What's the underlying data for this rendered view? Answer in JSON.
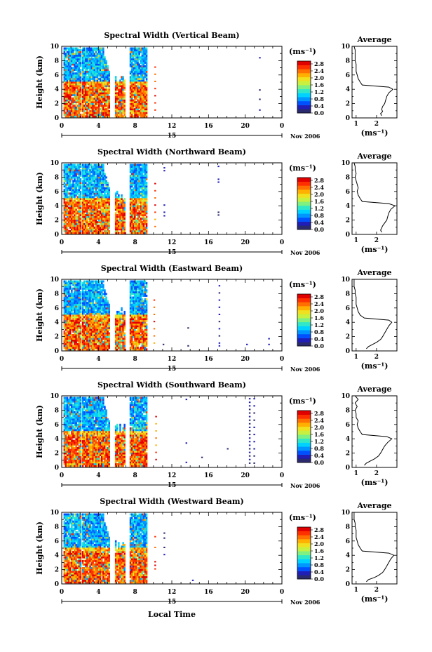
{
  "figure": {
    "xlabel": "Local Time",
    "date_label": "Nov 2006",
    "day_label": "15",
    "colorbar_unit": "(ms⁻¹)",
    "avg_title": "Average",
    "avg_unit": "(ms⁻¹)",
    "colorbar_ticks": [
      "2.8",
      "2.4",
      "2.0",
      "1.6",
      "1.2",
      "0.8",
      "0.4",
      "0.0"
    ],
    "colormap": [
      "#2a2a6e",
      "#1f1fb8",
      "#0050ff",
      "#0096ff",
      "#00d2ff",
      "#30e8c8",
      "#80f080",
      "#c8f040",
      "#f0e020",
      "#ffb000",
      "#ff7000",
      "#ff3000",
      "#e00000"
    ]
  },
  "chart_data": [
    {
      "type": "heatmap",
      "title": "Spectral Width (Vertical Beam)",
      "ylabel": "Height (km)",
      "x_ticks": [
        "0",
        "4",
        "8",
        "12",
        "16",
        "20",
        "0"
      ],
      "y_ticks": [
        "0",
        "2",
        "4",
        "6",
        "8",
        "10"
      ],
      "xlim": [
        0,
        24
      ],
      "ylim": [
        0,
        10
      ],
      "colorbar_range": [
        0.0,
        3.0
      ],
      "average_profile": {
        "xlim": [
          0.8,
          3.0
        ],
        "x_ticks": [
          "1",
          "2"
        ],
        "y_ticks": [
          "0",
          "2",
          "4",
          "6",
          "8",
          "10"
        ],
        "height": [
          0.3,
          0.6,
          0.9,
          1.2,
          1.6,
          2.0,
          2.5,
          3.0,
          3.5,
          4.0,
          4.3,
          4.6,
          5.0,
          5.5,
          6.0,
          6.5,
          7.0,
          7.5,
          8.0,
          8.5,
          9.0,
          9.5,
          10.0
        ],
        "width": [
          2.25,
          2.2,
          2.3,
          2.25,
          2.3,
          2.4,
          2.45,
          2.5,
          2.6,
          2.8,
          2.6,
          1.3,
          1.2,
          1.1,
          1.05,
          1.0,
          1.0,
          1.0,
          0.95,
          0.95,
          0.95,
          0.95,
          0.9
        ]
      }
    },
    {
      "type": "heatmap",
      "title": "Spectral Width (Northward Beam)",
      "ylabel": "Height (km)",
      "x_ticks": [
        "0",
        "4",
        "8",
        "12",
        "16",
        "20",
        "0"
      ],
      "y_ticks": [
        "0",
        "2",
        "4",
        "6",
        "8",
        "10"
      ],
      "xlim": [
        0,
        24
      ],
      "ylim": [
        0,
        10
      ],
      "colorbar_range": [
        0.0,
        3.0
      ],
      "average_profile": {
        "xlim": [
          0.8,
          3.0
        ],
        "x_ticks": [
          "1",
          "2"
        ],
        "y_ticks": [
          "0",
          "2",
          "4",
          "6",
          "8",
          "10"
        ],
        "height": [
          0.3,
          0.6,
          0.9,
          1.2,
          1.6,
          2.0,
          2.5,
          3.0,
          3.5,
          4.0,
          4.3,
          4.6,
          5.0,
          5.5,
          6.0,
          6.5,
          7.0,
          7.5,
          8.0,
          8.5,
          9.0,
          9.5,
          10.0
        ],
        "width": [
          2.25,
          2.2,
          2.25,
          2.3,
          2.4,
          2.5,
          2.55,
          2.6,
          2.7,
          2.9,
          2.6,
          1.3,
          1.2,
          1.1,
          1.05,
          1.1,
          1.05,
          1.0,
          0.95,
          1.0,
          0.95,
          0.95,
          0.9
        ]
      }
    },
    {
      "type": "heatmap",
      "title": "Spectral Width (Eastward Beam)",
      "ylabel": "Height (km)",
      "x_ticks": [
        "0",
        "4",
        "8",
        "12",
        "16",
        "20",
        "0"
      ],
      "y_ticks": [
        "0",
        "2",
        "4",
        "6",
        "8",
        "10"
      ],
      "xlim": [
        0,
        24
      ],
      "ylim": [
        0,
        10
      ],
      "colorbar_range": [
        0.0,
        3.0
      ],
      "average_profile": {
        "xlim": [
          0.8,
          3.0
        ],
        "x_ticks": [
          "1",
          "2"
        ],
        "y_ticks": [
          "0",
          "2",
          "4",
          "6",
          "8",
          "10"
        ],
        "height": [
          0.3,
          0.6,
          0.9,
          1.2,
          1.6,
          2.0,
          2.5,
          3.0,
          3.5,
          4.0,
          4.3,
          4.6,
          5.0,
          5.5,
          6.0,
          6.5,
          7.0,
          7.5,
          8.0,
          8.5,
          9.0,
          9.5,
          10.0
        ],
        "width": [
          1.5,
          1.6,
          1.8,
          2.0,
          2.2,
          2.3,
          2.4,
          2.5,
          2.6,
          2.75,
          2.6,
          1.4,
          1.2,
          1.1,
          1.05,
          1.0,
          1.0,
          1.0,
          0.95,
          0.95,
          0.9,
          0.9,
          0.9
        ]
      }
    },
    {
      "type": "heatmap",
      "title": "Spectral Width (Southward Beam)",
      "ylabel": "Height (km)",
      "x_ticks": [
        "0",
        "4",
        "8",
        "12",
        "16",
        "20",
        "0"
      ],
      "y_ticks": [
        "0",
        "2",
        "4",
        "6",
        "8",
        "10"
      ],
      "xlim": [
        0,
        24
      ],
      "ylim": [
        0,
        10
      ],
      "colorbar_range": [
        0.0,
        3.0
      ],
      "average_profile": {
        "xlim": [
          0.8,
          3.0
        ],
        "x_ticks": [
          "1",
          "2"
        ],
        "y_ticks": [
          "0",
          "2",
          "4",
          "6",
          "8",
          "10"
        ],
        "height": [
          0.3,
          0.6,
          0.9,
          1.2,
          1.6,
          2.0,
          2.5,
          3.0,
          3.5,
          4.0,
          4.3,
          4.6,
          5.0,
          5.5,
          6.0,
          6.5,
          7.0,
          7.5,
          8.0,
          8.5,
          9.0,
          9.5,
          10.0
        ],
        "width": [
          1.4,
          1.5,
          1.7,
          1.9,
          2.1,
          2.2,
          2.3,
          2.4,
          2.55,
          2.75,
          2.5,
          1.3,
          1.2,
          1.1,
          1.05,
          1.1,
          1.0,
          1.0,
          0.95,
          1.05,
          0.95,
          1.1,
          0.95
        ]
      }
    },
    {
      "type": "heatmap",
      "title": "Spectral Width (Westward Beam)",
      "ylabel": "Height (km)",
      "x_ticks": [
        "0",
        "4",
        "8",
        "12",
        "16",
        "20",
        "0"
      ],
      "y_ticks": [
        "0",
        "2",
        "4",
        "6",
        "8",
        "10"
      ],
      "xlim": [
        0,
        24
      ],
      "ylim": [
        0,
        10
      ],
      "colorbar_range": [
        0.0,
        3.0
      ],
      "average_profile": {
        "xlim": [
          0.8,
          3.0
        ],
        "x_ticks": [
          "1",
          "2"
        ],
        "y_ticks": [
          "0",
          "2",
          "4",
          "6",
          "8",
          "10"
        ],
        "height": [
          0.3,
          0.6,
          0.9,
          1.2,
          1.6,
          2.0,
          2.5,
          3.0,
          3.5,
          4.0,
          4.3,
          4.6,
          5.0,
          5.5,
          6.0,
          6.5,
          7.0,
          7.5,
          8.0,
          8.5,
          9.0,
          9.5,
          10.0
        ],
        "width": [
          1.5,
          1.6,
          1.9,
          2.1,
          2.3,
          2.4,
          2.5,
          2.6,
          2.7,
          2.85,
          2.6,
          1.3,
          1.2,
          1.1,
          1.05,
          1.0,
          1.0,
          1.0,
          0.95,
          0.95,
          0.9,
          0.9,
          0.9
        ]
      }
    }
  ]
}
